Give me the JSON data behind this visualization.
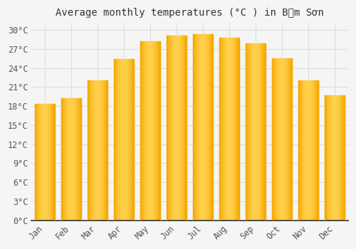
{
  "title": "Average monthly temperatures (°C ) in Bỉm Sơn",
  "months": [
    "Jan",
    "Feb",
    "Mar",
    "Apr",
    "May",
    "Jun",
    "Jul",
    "Aug",
    "Sep",
    "Oct",
    "Nov",
    "Dec"
  ],
  "temperatures": [
    18.3,
    19.2,
    22.1,
    25.4,
    28.2,
    29.1,
    29.3,
    28.8,
    27.9,
    25.5,
    22.1,
    19.7
  ],
  "bar_color_center": "#FFD04B",
  "bar_color_edge": "#F5A800",
  "background_color": "#F5F5F5",
  "plot_bg_color": "#F5F5F5",
  "grid_color": "#DDDDDD",
  "axis_color": "#333333",
  "tick_label_color": "#555555",
  "ylim": [
    0,
    31
  ],
  "ytick_step": 3,
  "title_fontsize": 10,
  "tick_fontsize": 8.5,
  "font_family": "DejaVu Sans Mono",
  "bar_width": 0.75
}
